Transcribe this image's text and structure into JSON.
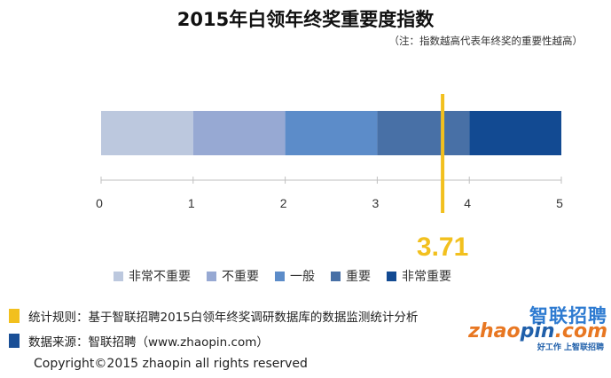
{
  "title": "2015年白领年终奖重要度指数",
  "subtitle": "（注：指数越高代表年终奖的重要性越高）",
  "chart_data": {
    "type": "bar",
    "orientation": "horizontal-stacked-scale",
    "xlim": [
      0,
      5
    ],
    "ticks": [
      0,
      1,
      2,
      3,
      4,
      5
    ],
    "segments": [
      {
        "name": "非常不重要",
        "from": 0,
        "to": 1,
        "color": "#bcc8de"
      },
      {
        "name": "不重要",
        "from": 1,
        "to": 2,
        "color": "#97a9d3"
      },
      {
        "name": "一般",
        "from": 2,
        "to": 3,
        "color": "#5c8cc9"
      },
      {
        "name": "重要",
        "from": 3,
        "to": 4,
        "color": "#4870a6"
      },
      {
        "name": "非常重要",
        "from": 4,
        "to": 5,
        "color": "#124a92"
      }
    ],
    "marker": {
      "value": 3.71,
      "label": "3.71",
      "color": "#f2c01e"
    }
  },
  "notes": [
    {
      "text": "统计规则：基于智联招聘2015白领年终奖调研数据库的数据监测统计分析",
      "color": "#f2c01e"
    },
    {
      "text": "数据来源：智联招聘（www.zhaopin.com）",
      "color": "#1a4f96"
    }
  ],
  "copyright": "Copyright©2015 zhaopin all rights reserved",
  "logo": {
    "name_cn": "智联招聘",
    "name_en_part1": "zhao",
    "name_en_part2": "pin",
    "name_en_part3": ".com",
    "slogan": "好工作 上智联招聘"
  }
}
